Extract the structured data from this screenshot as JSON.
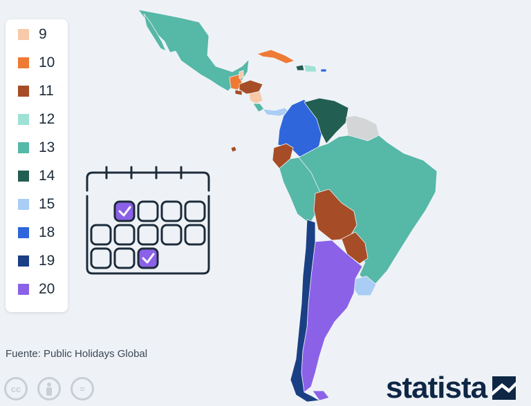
{
  "legend": {
    "items": [
      {
        "label": "9",
        "color": "#f7c9a8"
      },
      {
        "label": "10",
        "color": "#ef7a34"
      },
      {
        "label": "11",
        "color": "#a64d27"
      },
      {
        "label": "12",
        "color": "#9ee1d5"
      },
      {
        "label": "13",
        "color": "#56b8a7"
      },
      {
        "label": "14",
        "color": "#235e52"
      },
      {
        "label": "15",
        "color": "#a9cdf5"
      },
      {
        "label": "18",
        "color": "#2f66dc"
      },
      {
        "label": "19",
        "color": "#1b3f84"
      },
      {
        "label": "20",
        "color": "#8b61e8"
      }
    ]
  },
  "source": "Fuente: Public Holidays Global",
  "brand": "statista",
  "license_icons": [
    "cc-icon",
    "attribution-icon",
    "no-derivatives-icon"
  ],
  "license_labels": [
    "cc",
    "",
    "="
  ]
}
